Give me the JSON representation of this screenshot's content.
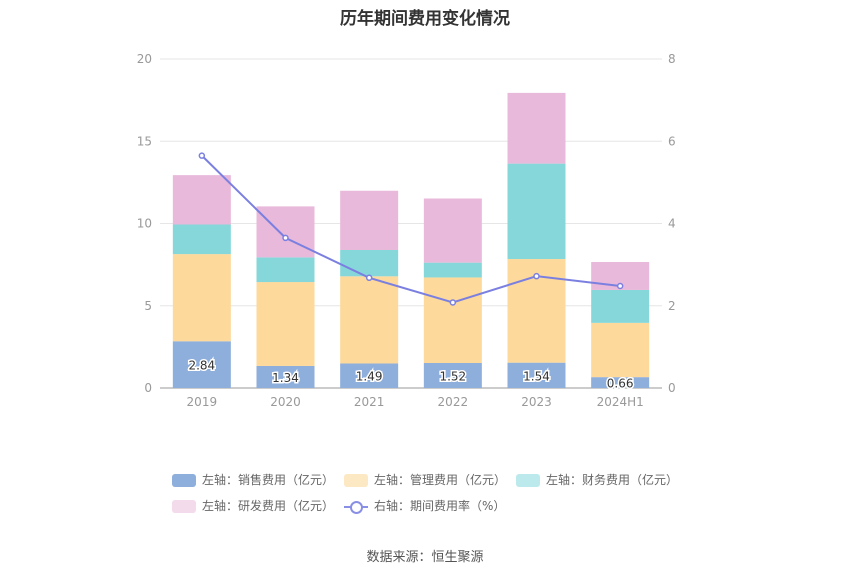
{
  "title": "历年期间费用变化情况",
  "source": "数据来源：恒生聚源",
  "colors": {
    "sales": "#8eaedb",
    "admin": "#fdd99b",
    "finance": "#85d7da",
    "rnd": "#e8b9da",
    "rate": "#7b80e0",
    "legend_sales": "#8eaedb",
    "legend_admin": "#fde8c4",
    "legend_finance": "#bce9eb",
    "legend_rnd": "#f3dbec"
  },
  "legend": [
    {
      "key": "sales",
      "label": "左轴：销售费用（亿元）"
    },
    {
      "key": "admin",
      "label": "左轴：管理费用（亿元）"
    },
    {
      "key": "finance",
      "label": "左轴：财务费用（亿元）"
    },
    {
      "key": "rnd",
      "label": "左轴：研发费用（亿元）"
    },
    {
      "key": "rate",
      "label": "右轴：期间费用率（%）"
    }
  ],
  "chart_data": {
    "type": "bar",
    "stacked": true,
    "categories": [
      "2019",
      "2020",
      "2021",
      "2022",
      "2023",
      "2024H1"
    ],
    "series": [
      {
        "name": "左轴：销售费用（亿元）",
        "key": "sales",
        "axis": "left",
        "values": [
          2.84,
          1.34,
          1.49,
          1.52,
          1.54,
          0.66
        ],
        "labels": [
          "2.84",
          "1.34",
          "1.49",
          "1.52",
          "1.54",
          "0.66"
        ]
      },
      {
        "name": "左轴：管理费用（亿元）",
        "key": "admin",
        "axis": "left",
        "values": [
          5.3,
          5.1,
          5.3,
          5.2,
          6.3,
          3.3
        ]
      },
      {
        "name": "左轴：财务费用（亿元）",
        "key": "finance",
        "axis": "left",
        "values": [
          1.8,
          1.5,
          1.6,
          0.9,
          5.8,
          2.0
        ]
      },
      {
        "name": "左轴：研发费用（亿元）",
        "key": "rnd",
        "axis": "left",
        "values": [
          3.0,
          3.1,
          3.6,
          3.9,
          4.3,
          1.7
        ]
      },
      {
        "name": "右轴：期间费用率（%）",
        "key": "rate",
        "axis": "right",
        "type": "line",
        "values": [
          5.65,
          3.65,
          2.68,
          2.08,
          2.72,
          2.48
        ]
      }
    ],
    "left_axis": {
      "min": 0,
      "max": 20,
      "ticks": [
        "0",
        "5",
        "10",
        "15",
        "20"
      ]
    },
    "right_axis": {
      "min": 0,
      "max": 8,
      "ticks": [
        "0",
        "2",
        "4",
        "6",
        "8"
      ]
    },
    "grid": true,
    "legend_position": "bottom"
  }
}
